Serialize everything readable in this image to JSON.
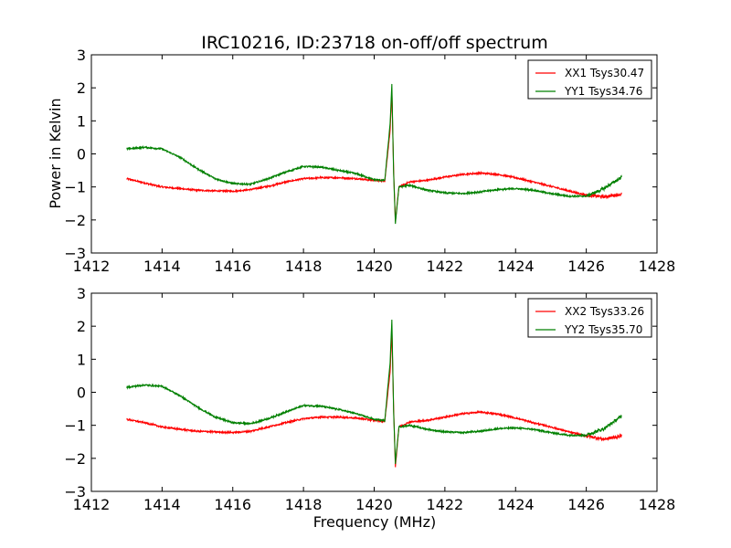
{
  "chart_data": [
    {
      "type": "line",
      "title": "IRC10216, ID:23718 on-off/off spectrum",
      "xlabel": "",
      "ylabel": "Power in Kelvin",
      "xlim": [
        1412,
        1428
      ],
      "ylim": [
        -3,
        3
      ],
      "xticks": [
        "1412",
        "1414",
        "1416",
        "1418",
        "1420",
        "1422",
        "1424",
        "1426",
        "1428"
      ],
      "yticks": [
        "−3",
        "−2",
        "−1",
        "0",
        "1",
        "2",
        "3"
      ],
      "grid": false,
      "legend_position": "top-right",
      "series": [
        {
          "name": "XX1 Tsys30.47",
          "color": "#ff0000",
          "x": [
            1413.0,
            1413.5,
            1414.0,
            1414.5,
            1415.0,
            1415.5,
            1416.0,
            1416.5,
            1417.0,
            1417.5,
            1418.0,
            1418.5,
            1419.0,
            1419.5,
            1420.0,
            1420.3,
            1420.45,
            1420.5,
            1420.55,
            1420.6,
            1420.7,
            1421.0,
            1421.5,
            1422.0,
            1422.5,
            1423.0,
            1423.5,
            1424.0,
            1424.5,
            1425.0,
            1425.5,
            1426.0,
            1426.5,
            1427.0
          ],
          "y": [
            -0.75,
            -0.88,
            -1.0,
            -1.05,
            -1.1,
            -1.12,
            -1.13,
            -1.08,
            -0.98,
            -0.85,
            -0.75,
            -0.72,
            -0.72,
            -0.75,
            -0.8,
            -0.82,
            0.7,
            1.9,
            -0.5,
            -2.05,
            -1.0,
            -0.85,
            -0.8,
            -0.7,
            -0.62,
            -0.58,
            -0.62,
            -0.72,
            -0.85,
            -0.98,
            -1.12,
            -1.25,
            -1.3,
            -1.22
          ]
        },
        {
          "name": "YY1 Tsys34.76",
          "color": "#008000",
          "x": [
            1413.0,
            1413.5,
            1414.0,
            1414.5,
            1415.0,
            1415.5,
            1416.0,
            1416.5,
            1417.0,
            1417.5,
            1418.0,
            1418.5,
            1419.0,
            1419.5,
            1420.0,
            1420.3,
            1420.45,
            1420.5,
            1420.55,
            1420.6,
            1420.7,
            1421.0,
            1421.5,
            1422.0,
            1422.5,
            1423.0,
            1423.5,
            1424.0,
            1424.5,
            1425.0,
            1425.5,
            1426.0,
            1426.5,
            1427.0
          ],
          "y": [
            0.15,
            0.2,
            0.15,
            -0.1,
            -0.45,
            -0.75,
            -0.9,
            -0.92,
            -0.75,
            -0.55,
            -0.38,
            -0.4,
            -0.5,
            -0.6,
            -0.78,
            -0.8,
            0.9,
            2.1,
            -0.6,
            -2.1,
            -1.0,
            -0.95,
            -1.1,
            -1.18,
            -1.2,
            -1.15,
            -1.08,
            -1.05,
            -1.1,
            -1.2,
            -1.28,
            -1.28,
            -1.05,
            -0.7
          ]
        }
      ]
    },
    {
      "type": "line",
      "title": "",
      "xlabel": "Frequency (MHz)",
      "ylabel": "",
      "xlim": [
        1412,
        1428
      ],
      "ylim": [
        -3,
        3
      ],
      "xticks": [
        "1412",
        "1414",
        "1416",
        "1418",
        "1420",
        "1422",
        "1424",
        "1426",
        "1428"
      ],
      "yticks": [
        "−3",
        "−2",
        "−1",
        "0",
        "1",
        "2",
        "3"
      ],
      "grid": false,
      "legend_position": "top-right",
      "series": [
        {
          "name": "XX2 Tsys33.26",
          "color": "#ff0000",
          "x": [
            1413.0,
            1413.5,
            1414.0,
            1414.5,
            1415.0,
            1415.5,
            1416.0,
            1416.5,
            1417.0,
            1417.5,
            1418.0,
            1418.5,
            1419.0,
            1419.5,
            1420.0,
            1420.3,
            1420.45,
            1420.5,
            1420.55,
            1420.6,
            1420.7,
            1421.0,
            1421.5,
            1422.0,
            1422.5,
            1423.0,
            1423.5,
            1424.0,
            1424.5,
            1425.0,
            1425.5,
            1426.0,
            1426.5,
            1427.0
          ],
          "y": [
            -0.82,
            -0.92,
            -1.05,
            -1.12,
            -1.18,
            -1.2,
            -1.22,
            -1.18,
            -1.05,
            -0.92,
            -0.8,
            -0.75,
            -0.75,
            -0.78,
            -0.85,
            -0.88,
            0.6,
            1.9,
            -0.5,
            -2.25,
            -1.05,
            -0.9,
            -0.85,
            -0.75,
            -0.65,
            -0.6,
            -0.66,
            -0.78,
            -0.92,
            -1.05,
            -1.2,
            -1.32,
            -1.42,
            -1.32
          ]
        },
        {
          "name": "YY2 Tsys35.70",
          "color": "#008000",
          "x": [
            1413.0,
            1413.5,
            1414.0,
            1414.5,
            1415.0,
            1415.5,
            1416.0,
            1416.5,
            1417.0,
            1417.5,
            1418.0,
            1418.5,
            1419.0,
            1419.5,
            1420.0,
            1420.3,
            1420.45,
            1420.5,
            1420.55,
            1420.6,
            1420.7,
            1421.0,
            1421.5,
            1422.0,
            1422.5,
            1423.0,
            1423.5,
            1424.0,
            1424.5,
            1425.0,
            1425.5,
            1426.0,
            1426.5,
            1427.0
          ],
          "y": [
            0.15,
            0.22,
            0.18,
            -0.1,
            -0.45,
            -0.75,
            -0.92,
            -0.95,
            -0.8,
            -0.6,
            -0.4,
            -0.42,
            -0.52,
            -0.65,
            -0.82,
            -0.85,
            0.9,
            2.2,
            -0.6,
            -2.15,
            -1.05,
            -1.0,
            -1.12,
            -1.2,
            -1.22,
            -1.18,
            -1.1,
            -1.08,
            -1.12,
            -1.22,
            -1.3,
            -1.3,
            -1.1,
            -0.72
          ]
        }
      ]
    }
  ]
}
